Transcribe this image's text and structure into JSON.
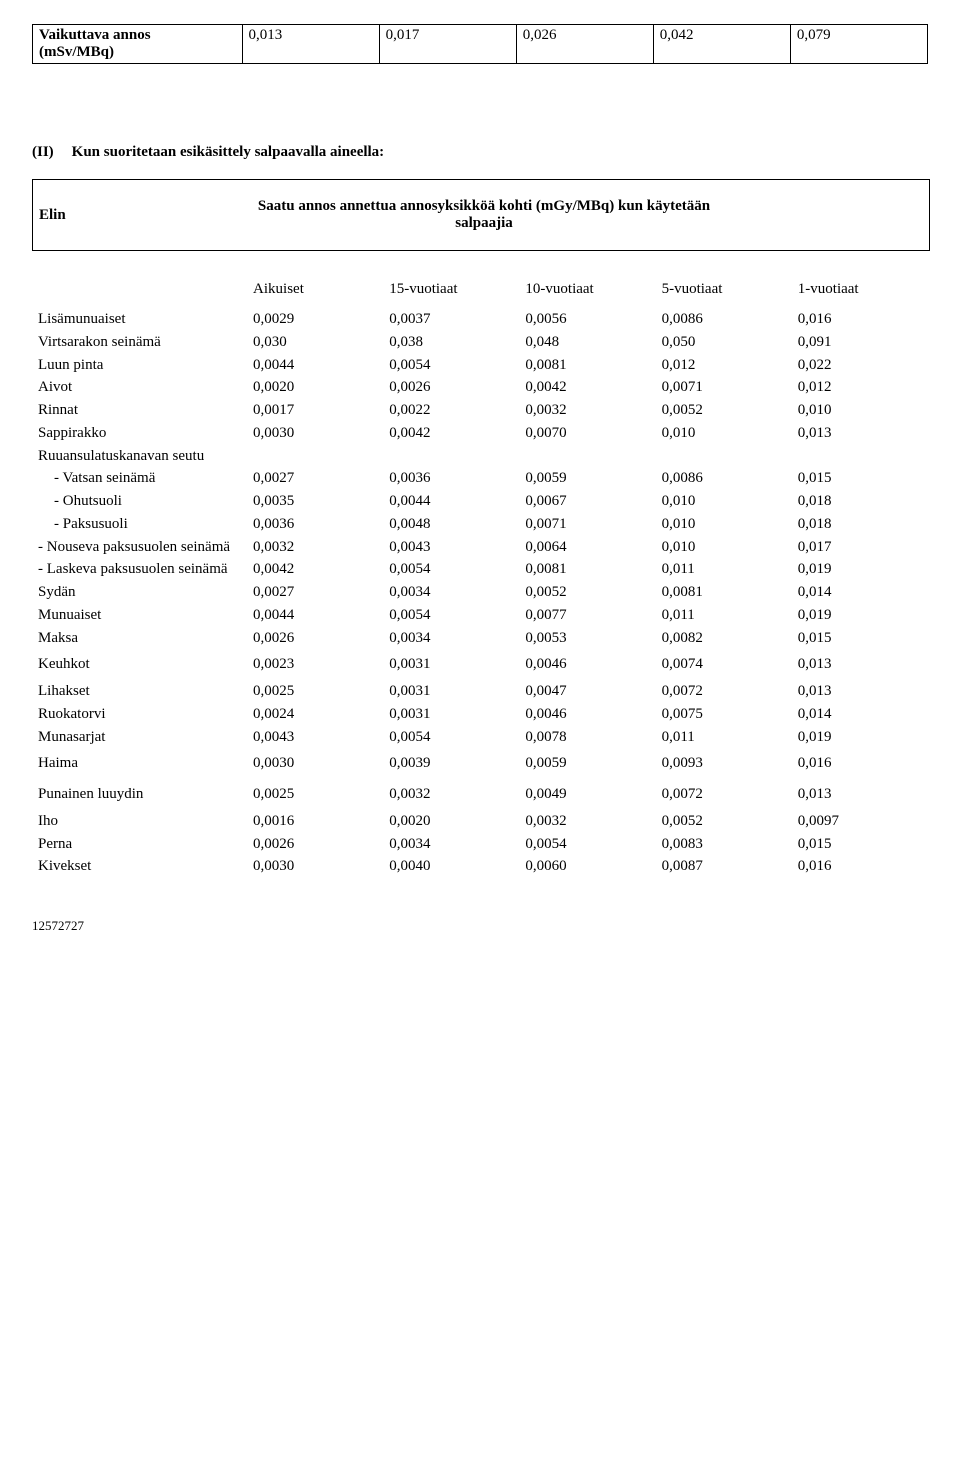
{
  "top_table": {
    "label_line1": "Vaikuttava annos",
    "label_line2": "(mSv/MBq)",
    "values": [
      "0,013",
      "0,017",
      "0,026",
      "0,042",
      "0,079"
    ]
  },
  "section": {
    "num": "(II)",
    "text": "Kun suoritetaan esikäsittely salpaavalla aineella:"
  },
  "elin_box": {
    "left": "Elin",
    "center_line1": "Saatu annos annettua annosyksikköä kohti (mGy/MBq) kun käytetään",
    "center_line2": "salpaajia"
  },
  "headers": {
    "c0": "Aikuiset",
    "c1": "15-vuotiaat",
    "c2": "10-vuotiaat",
    "c3": "5-vuotiaat",
    "c4": "1-vuotiaat"
  },
  "rows": [
    {
      "label": "Lisämunuaiset",
      "v": [
        "0,0029",
        "0,0037",
        "0,0056",
        "0,0086",
        "0,016"
      ]
    },
    {
      "label": "Virtsarakon seinämä",
      "v": [
        "0,030",
        "0,038",
        "0,048",
        "0,050",
        "0,091"
      ]
    },
    {
      "label": "Luun pinta",
      "v": [
        "0,0044",
        "0,0054",
        "0,0081",
        "0,012",
        "0,022"
      ]
    },
    {
      "label": "Aivot",
      "v": [
        "0,0020",
        "0,0026",
        "0,0042",
        "0,0071",
        "0,012"
      ]
    },
    {
      "label": "Rinnat",
      "v": [
        "0,0017",
        "0,0022",
        "0,0032",
        "0,0052",
        "0,010"
      ]
    },
    {
      "label": "Sappirakko",
      "v": [
        "0,0030",
        "0,0042",
        "0,0070",
        "0,010",
        "0,013"
      ]
    },
    {
      "label": "Ruuansulatuskanavan seutu",
      "v": [
        "",
        "",
        "",
        "",
        ""
      ]
    },
    {
      "label": "- Vatsan seinämä",
      "indent": true,
      "v": [
        "0,0027",
        "0,0036",
        "0,0059",
        "0,0086",
        "0,015"
      ]
    },
    {
      "label": "- Ohutsuoli",
      "indent": true,
      "v": [
        "0,0035",
        "0,0044",
        "0,0067",
        "0,010",
        "0,018"
      ]
    },
    {
      "label": "- Paksusuoli",
      "indent": true,
      "v": [
        "0,0036",
        "0,0048",
        "0,0071",
        "0,010",
        "0,018"
      ]
    },
    {
      "label": "- Nouseva paksusuolen seinämä",
      "v": [
        "0,0032",
        "0,0043",
        "0,0064",
        "0,010",
        "0,017"
      ]
    },
    {
      "label": "- Laskeva paksusuolen seinämä",
      "v": [
        "0,0042",
        "0,0054",
        "0,0081",
        "0,011",
        "0,019"
      ]
    },
    {
      "label": "Sydän",
      "v": [
        "0,0027",
        "0,0034",
        "0,0052",
        "0,0081",
        "0,014"
      ]
    },
    {
      "label": "Munuaiset",
      "v": [
        "0,0044",
        "0,0054",
        "0,0077",
        "0,011",
        "0,019"
      ]
    },
    {
      "label": "Maksa",
      "v": [
        "0,0026",
        "0,0034",
        "0,0053",
        "0,0082",
        "0,015"
      ]
    },
    {
      "label": "Keuhkot",
      "tall": true,
      "v": [
        "0,0023",
        "0,0031",
        "0,0046",
        "0,0074",
        "0,013"
      ]
    },
    {
      "label": "Lihakset",
      "v": [
        "0,0025",
        "0,0031",
        "0,0047",
        "0,0072",
        "0,013"
      ]
    },
    {
      "label": "Ruokatorvi",
      "v": [
        "0,0024",
        "0,0031",
        "0,0046",
        "0,0075",
        "0,014"
      ]
    },
    {
      "label": "Munasarjat",
      "v": [
        "0,0043",
        "0,0054",
        "0,0078",
        "0,011",
        "0,019"
      ]
    },
    {
      "label": "Haima",
      "tall": true,
      "v": [
        "0,0030",
        "0,0039",
        "0,0059",
        "0,0093",
        "0,016"
      ]
    },
    {
      "label": "Punainen luuydin",
      "tall": true,
      "v": [
        "0,0025",
        "0,0032",
        "0,0049",
        "0,0072",
        "0,013"
      ]
    },
    {
      "label": "Iho",
      "v": [
        "0,0016",
        "0,0020",
        "0,0032",
        "0,0052",
        "0,0097"
      ]
    },
    {
      "label": "Perna",
      "v": [
        "0,0026",
        "0,0034",
        "0,0054",
        "0,0083",
        "0,015"
      ]
    },
    {
      "label": "Kivekset",
      "v": [
        "0,0030",
        "0,0040",
        "0,0060",
        "0,0087",
        "0,016"
      ]
    }
  ],
  "footer": "12572727"
}
